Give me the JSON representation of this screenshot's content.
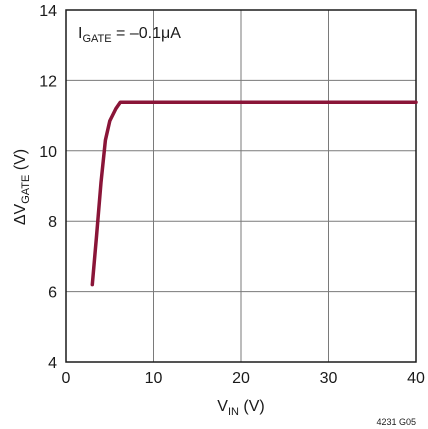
{
  "chart_data": {
    "type": "line",
    "title": "",
    "xlabel": {
      "main": "V",
      "sub": "IN",
      "unit": " (V)"
    },
    "ylabel": {
      "main": "ΔV",
      "sub": "GATE",
      "unit": " (V)"
    },
    "xlim": [
      0,
      40
    ],
    "ylim": [
      4,
      14
    ],
    "xticks": [
      0,
      10,
      20,
      30,
      40
    ],
    "yticks": [
      4,
      6,
      8,
      10,
      12,
      14
    ],
    "grid": true,
    "annotation": {
      "main": "I",
      "sub": "GATE",
      "rest": " = –0.1μA"
    },
    "figure_code": "4231 G05",
    "line_color": "#8a1538",
    "series": [
      {
        "x": [
          3.0,
          3.5,
          4.0,
          4.5,
          5.0,
          5.7,
          6.2,
          10,
          20,
          30,
          40
        ],
        "y": [
          6.2,
          7.6,
          9.1,
          10.3,
          10.85,
          11.2,
          11.38,
          11.38,
          11.38,
          11.38,
          11.38
        ]
      }
    ]
  }
}
